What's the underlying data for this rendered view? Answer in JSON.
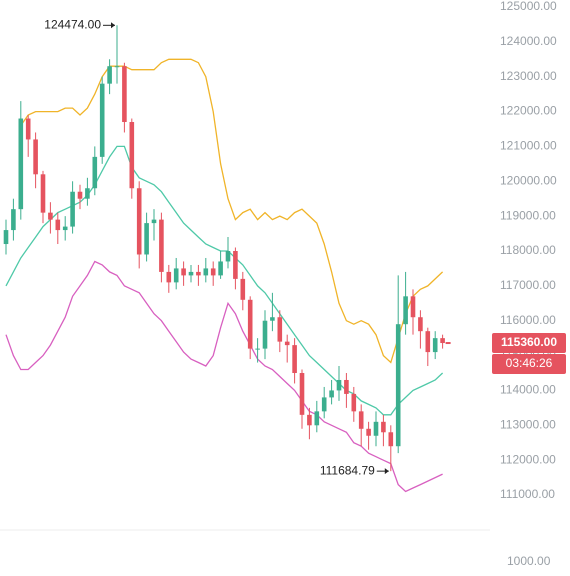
{
  "chart_data": {
    "type": "candlestick",
    "ylim": [
      110140,
      125200
    ],
    "yticks": [
      {
        "value": 111000,
        "label": "111000.00"
      },
      {
        "value": 112000,
        "label": "112000.00"
      },
      {
        "value": 113000,
        "label": "113000.00"
      },
      {
        "value": 114000,
        "label": "114000.00"
      },
      {
        "value": 115000,
        "label": "115000.00"
      },
      {
        "value": 116000,
        "label": "116000.00"
      },
      {
        "value": 117000,
        "label": "117000.00"
      },
      {
        "value": 118000,
        "label": "118000.00"
      },
      {
        "value": 119000,
        "label": "119000.00"
      },
      {
        "value": 120000,
        "label": "120000.00"
      },
      {
        "value": 121000,
        "label": "121000.00"
      },
      {
        "value": 122000,
        "label": "122000.00"
      },
      {
        "value": 123000,
        "label": "123000.00"
      },
      {
        "value": 124000,
        "label": "124000.00"
      },
      {
        "value": 125000,
        "label": "125000.00"
      }
    ],
    "grid": false,
    "up_color": "#3bae8e",
    "down_color": "#e5535f",
    "open": [
      118200,
      118600,
      119200,
      121800,
      121200,
      120200,
      119100,
      118900,
      118600,
      118700,
      119700,
      119500,
      119800,
      120700,
      122800,
      123300,
      123300,
      121700,
      119800,
      117900,
      118800,
      118900,
      117400,
      117100,
      117500,
      117300,
      117400,
      117300,
      117500,
      117300,
      117700,
      118000,
      117200,
      116600,
      115200,
      115200,
      116000,
      116100,
      115400,
      115300,
      114500,
      113300,
      113000,
      113400,
      113800,
      114000,
      114300,
      113900,
      113400,
      112900,
      112700,
      113100,
      112800,
      112400,
      115900,
      116700,
      116100,
      115700,
      115100,
      115500
    ],
    "high": [
      118900,
      119500,
      122300,
      121900,
      121400,
      120300,
      119400,
      119100,
      119000,
      120000,
      119900,
      120100,
      121000,
      123000,
      123500,
      124474,
      123400,
      121800,
      120000,
      119100,
      119200,
      119100,
      117600,
      117800,
      117700,
      117600,
      117600,
      117800,
      117700,
      118000,
      118400,
      118100,
      117400,
      116700,
      115500,
      116300,
      116800,
      116300,
      115600,
      115500,
      114600,
      113500,
      113700,
      114100,
      114300,
      114700,
      114500,
      114100,
      113600,
      113100,
      113400,
      113300,
      113000,
      117300,
      117400,
      116900,
      116300,
      115800,
      115700,
      115600
    ],
    "low": [
      117900,
      118300,
      118900,
      120700,
      119800,
      118800,
      118500,
      118200,
      118300,
      118500,
      119200,
      119300,
      119600,
      120500,
      122500,
      122800,
      121400,
      119500,
      117500,
      117700,
      118300,
      117100,
      116800,
      116900,
      117000,
      117100,
      117000,
      117100,
      117000,
      117200,
      117500,
      116900,
      116300,
      114900,
      114800,
      114900,
      115700,
      115100,
      114800,
      114200,
      112900,
      112600,
      112800,
      113200,
      113600,
      113700,
      113500,
      113100,
      112400,
      112300,
      112400,
      112400,
      111684.79,
      112200,
      115600,
      115600,
      115200,
      114700,
      114900,
      115200
    ],
    "close": [
      118600,
      119200,
      121800,
      121200,
      120200,
      119100,
      118900,
      118600,
      118700,
      119700,
      119500,
      119800,
      120700,
      122800,
      123300,
      123300,
      121700,
      119800,
      117900,
      118800,
      118900,
      117400,
      117100,
      117500,
      117300,
      117400,
      117300,
      117500,
      117300,
      117700,
      118000,
      117200,
      116600,
      115200,
      115200,
      116000,
      116100,
      115400,
      115300,
      114500,
      113300,
      113000,
      113400,
      113800,
      114000,
      114300,
      113900,
      113400,
      112900,
      112700,
      113100,
      112800,
      112400,
      115900,
      116700,
      116100,
      115700,
      115100,
      115500,
      115360
    ],
    "series": [
      {
        "color": "#f0b429",
        "values": [
          null,
          null,
          121600,
          121900,
          122000,
          122000,
          122000,
          122000,
          122100,
          122100,
          121900,
          122100,
          122500,
          123000,
          123300,
          123300,
          123300,
          123200,
          123200,
          123200,
          123200,
          123400,
          123500,
          123500,
          123500,
          123500,
          123400,
          123000,
          122000,
          120500,
          119500,
          118900,
          119100,
          119200,
          118900,
          119100,
          118900,
          119000,
          118900,
          119100,
          119200,
          119000,
          118800,
          118200,
          117400,
          116500,
          116000,
          115900,
          116000,
          115900,
          115600,
          115000,
          114800,
          115500,
          116200,
          116700,
          116900,
          117000,
          117200,
          117400
        ]
      },
      {
        "color": "#4fc9a8",
        "values": [
          117000,
          117400,
          117800,
          118100,
          118400,
          118700,
          118900,
          119100,
          119200,
          119300,
          119400,
          119600,
          119900,
          120300,
          120700,
          121000,
          121000,
          120400,
          120100,
          120000,
          119900,
          119700,
          119400,
          119100,
          118800,
          118600,
          118400,
          118200,
          118100,
          118000,
          118000,
          117800,
          117600,
          117300,
          117000,
          116800,
          116500,
          116200,
          115900,
          115600,
          115300,
          115000,
          114800,
          114600,
          114400,
          114200,
          114000,
          113900,
          113700,
          113600,
          113500,
          113300,
          113300,
          113600,
          113800,
          114000,
          114100,
          114200,
          114300,
          114500
        ]
      },
      {
        "color": "#d860c0",
        "values": [
          115600,
          115000,
          114600,
          114600,
          114800,
          115000,
          115300,
          115700,
          116100,
          116700,
          117000,
          117300,
          117700,
          117600,
          117400,
          117300,
          117000,
          116900,
          116800,
          116500,
          116200,
          116000,
          115700,
          115400,
          115100,
          114900,
          114800,
          114700,
          115000,
          115800,
          116500,
          116200,
          115700,
          115300,
          114900,
          114700,
          114600,
          114400,
          114200,
          114000,
          113700,
          113400,
          113300,
          113100,
          113000,
          112900,
          112800,
          112500,
          112400,
          112200,
          112100,
          112000,
          111900,
          111300,
          111100,
          111200,
          111300,
          111400,
          111500,
          111600
        ]
      }
    ],
    "annotations": [
      {
        "value": 124474,
        "label": "124474.00"
      },
      {
        "value": 111684.79,
        "label": "111684.79"
      }
    ],
    "last_price": {
      "value": 115360,
      "label": "115360.00"
    },
    "countdown": "03:46:26",
    "volume_ylim": [
      0,
      2500
    ],
    "volume_yticks": [
      {
        "value": 1000,
        "label": "1000.00"
      }
    ]
  }
}
